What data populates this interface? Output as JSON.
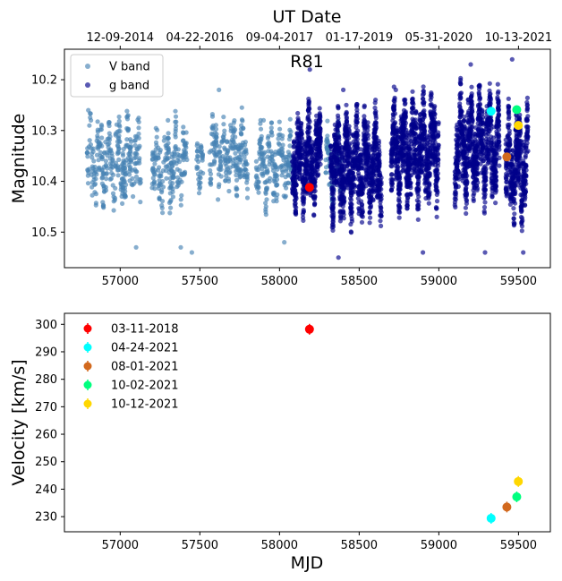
{
  "chart_data": [
    {
      "type": "scatter",
      "title": "R81",
      "xlabel": "",
      "ylabel": "Magnitude",
      "top_axis_label": "UT Date",
      "top_ticks": [
        {
          "mjd": 57000,
          "label": "12-09-2014"
        },
        {
          "mjd": 57500,
          "label": "04-22-2016"
        },
        {
          "mjd": 58000,
          "label": "09-04-2017"
        },
        {
          "mjd": 58500,
          "label": "01-17-2019"
        },
        {
          "mjd": 59000,
          "label": "05-31-2020"
        },
        {
          "mjd": 59500,
          "label": "10-13-2021"
        }
      ],
      "xlim": [
        56650,
        59700
      ],
      "ylim": [
        10.57,
        10.14
      ],
      "y_inverted": true,
      "xticks": [
        57000,
        57500,
        58000,
        58500,
        59000,
        59500
      ],
      "yticks": [
        10.2,
        10.3,
        10.4,
        10.5
      ],
      "legend": {
        "placement": "top-left",
        "entries": [
          {
            "label": "V band",
            "color": "#4682b4"
          },
          {
            "label": "g band",
            "color": "#00008b"
          }
        ]
      },
      "series": [
        {
          "name": "V band",
          "color": "#4682b4",
          "segments": [
            {
              "x0": 56790,
              "x1": 57130,
              "center": 10.36,
              "amp": 0.09
            },
            {
              "x0": 57200,
              "x1": 57420,
              "center": 10.37,
              "amp": 0.09
            },
            {
              "x0": 57480,
              "x1": 57520,
              "center": 10.36,
              "amp": 0.06
            },
            {
              "x0": 57560,
              "x1": 57800,
              "center": 10.35,
              "amp": 0.08
            },
            {
              "x0": 57850,
              "x1": 58080,
              "center": 10.37,
              "amp": 0.08
            },
            {
              "x0": 58290,
              "x1": 58390,
              "center": 10.37,
              "amp": 0.08
            }
          ],
          "points": [
            {
              "x": 56800,
              "y": 10.26
            },
            {
              "x": 57050,
              "y": 10.27
            },
            {
              "x": 57300,
              "y": 10.28
            },
            {
              "x": 57450,
              "y": 10.54
            },
            {
              "x": 57620,
              "y": 10.22
            },
            {
              "x": 57900,
              "y": 10.28
            },
            {
              "x": 58030,
              "y": 10.52
            },
            {
              "x": 57380,
              "y": 10.53
            },
            {
              "x": 57100,
              "y": 10.53
            }
          ]
        },
        {
          "name": "g band",
          "color": "#00008b",
          "segments": [
            {
              "x0": 58080,
              "x1": 58260,
              "center": 10.36,
              "amp": 0.1
            },
            {
              "x0": 58320,
              "x1": 58640,
              "center": 10.37,
              "amp": 0.11
            },
            {
              "x0": 58700,
              "x1": 59000,
              "center": 10.34,
              "amp": 0.11
            },
            {
              "x0": 59100,
              "x1": 59380,
              "center": 10.33,
              "amp": 0.11
            },
            {
              "x0": 59420,
              "x1": 59560,
              "center": 10.37,
              "amp": 0.11
            }
          ],
          "points": [
            {
              "x": 58190,
              "y": 10.18
            },
            {
              "x": 58370,
              "y": 10.55
            },
            {
              "x": 58400,
              "y": 10.22
            },
            {
              "x": 58730,
              "y": 10.22
            },
            {
              "x": 58900,
              "y": 10.54
            },
            {
              "x": 59200,
              "y": 10.17
            },
            {
              "x": 59290,
              "y": 10.54
            },
            {
              "x": 59460,
              "y": 10.16
            },
            {
              "x": 59530,
              "y": 10.54
            }
          ]
        }
      ],
      "markers": [
        {
          "date": "03-11-2018",
          "x": 58188,
          "y": 10.412,
          "color": "#ff0000"
        },
        {
          "date": "04-24-2021",
          "x": 59328,
          "y": 10.262,
          "color": "#00ffff"
        },
        {
          "date": "08-01-2021",
          "x": 59427,
          "y": 10.352,
          "color": "#d2691e"
        },
        {
          "date": "10-02-2021",
          "x": 59489,
          "y": 10.259,
          "color": "#00ff7f"
        },
        {
          "date": "10-12-2021",
          "x": 59499,
          "y": 10.29,
          "color": "#ffd700"
        }
      ]
    },
    {
      "type": "scatter",
      "title": "",
      "xlabel": "MJD",
      "ylabel": "Velocity [km/s]",
      "xlim": [
        56650,
        59700
      ],
      "ylim": [
        224.5,
        304
      ],
      "xticks": [
        57000,
        57500,
        58000,
        58500,
        59000,
        59500
      ],
      "yticks": [
        230,
        240,
        250,
        260,
        270,
        280,
        290,
        300
      ],
      "legend": {
        "placement": "top-left"
      },
      "series": [
        {
          "name": "03-11-2018",
          "color": "#ff0000",
          "x": 58188,
          "y": 298.2
        },
        {
          "name": "04-24-2021",
          "color": "#00ffff",
          "x": 59328,
          "y": 229.4
        },
        {
          "name": "08-01-2021",
          "color": "#d2691e",
          "x": 59427,
          "y": 233.5
        },
        {
          "name": "10-02-2021",
          "color": "#00ff7f",
          "x": 59489,
          "y": 237.2
        },
        {
          "name": "10-12-2021",
          "color": "#ffd700",
          "x": 59499,
          "y": 242.8
        }
      ]
    }
  ]
}
